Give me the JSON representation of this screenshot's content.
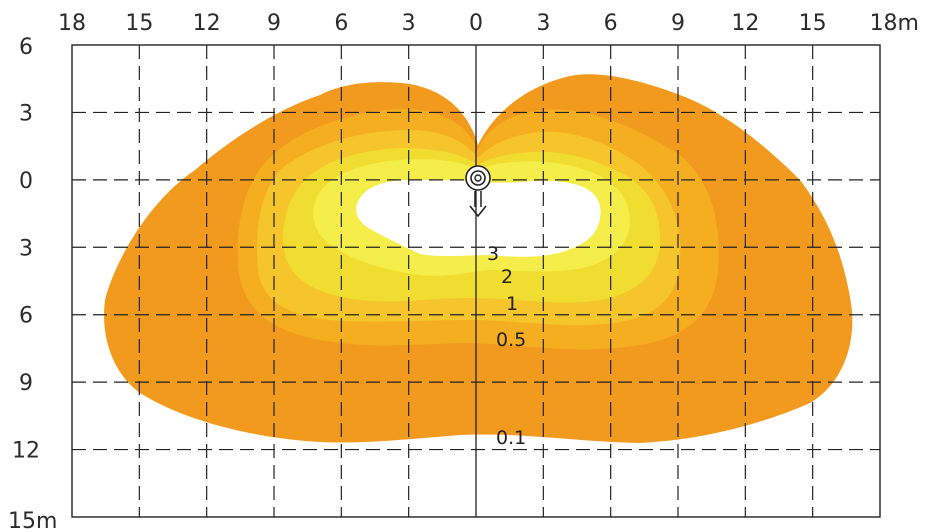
{
  "chart_data": {
    "type": "contour",
    "x_ticks": [
      "18",
      "15",
      "12",
      "9",
      "6",
      "3",
      "0",
      "3",
      "6",
      "9",
      "12",
      "15",
      "18m"
    ],
    "y_ticks": [
      "6",
      "3",
      "0",
      "3",
      "6",
      "9",
      "12",
      "15m"
    ],
    "xlim": [
      -18,
      18
    ],
    "ylim": [
      -6,
      15
    ],
    "x_unit": "m",
    "y_unit": "m",
    "grid": true,
    "source": {
      "x": 0,
      "y": 0
    },
    "levels": [
      {
        "label": "0.1",
        "value": 0.1,
        "color": "#f29a1d"
      },
      {
        "label": "0.5",
        "value": 0.5,
        "color": "#f5ae20"
      },
      {
        "label": "1",
        "value": 1,
        "color": "#f5c52b"
      },
      {
        "label": "2",
        "value": 2,
        "color": "#f1dd2f"
      },
      {
        "label": "3",
        "value": 3,
        "color": "#f5ee4a"
      }
    ]
  }
}
